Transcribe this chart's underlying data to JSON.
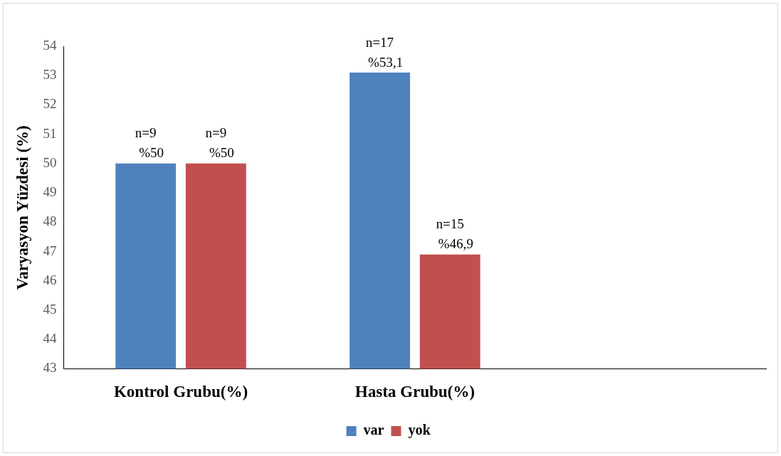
{
  "chart_data": {
    "type": "bar",
    "ylabel": "Varyasyon Yüzdesi (%)",
    "categories": [
      "Kontrol Grubu(%)",
      "Hasta Grubu(%)",
      null
    ],
    "series": [
      {
        "name": "var",
        "color": "#4f81bd",
        "values": [
          50,
          53.1,
          null
        ],
        "value_labels": [
          "n=9\n%50",
          "n=17\n%53,1",
          null
        ]
      },
      {
        "name": "yok",
        "color": "#c0504d",
        "values": [
          50,
          46.9,
          null
        ],
        "value_labels": [
          "n=9\n%50",
          "n=15\n%46,9",
          null
        ]
      }
    ],
    "ylim": [
      43,
      54
    ],
    "yticks": [
      43,
      44,
      45,
      46,
      47,
      48,
      49,
      50,
      51,
      52,
      53,
      54
    ],
    "grid": false,
    "legend": "bottom"
  }
}
